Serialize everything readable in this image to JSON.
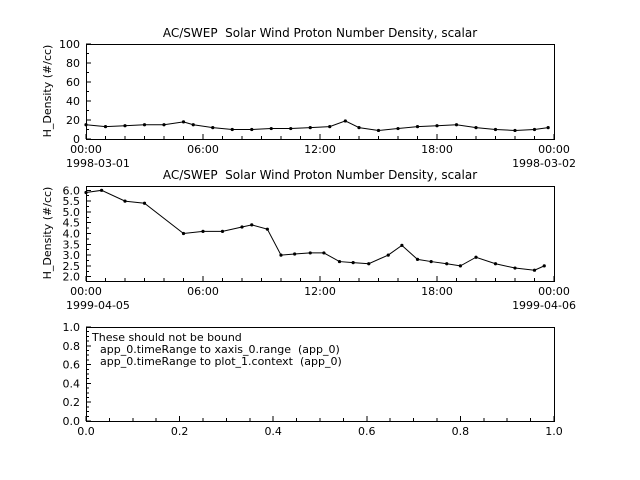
{
  "window": {
    "background": "#ffffff",
    "foreground": "#000000"
  },
  "chart_data": [
    {
      "type": "line",
      "title": "AC/SWEP  Solar Wind Proton Number Density, scalar",
      "ylabel": "H_Density (#/cc)",
      "xlim": [
        0,
        24
      ],
      "ylim": [
        0,
        100
      ],
      "yticks": [
        0,
        20,
        40,
        60,
        80,
        100
      ],
      "ytick_labels": [
        "0",
        "20",
        "40",
        "60",
        "80",
        "100"
      ],
      "xticks": [
        0,
        6,
        12,
        18,
        24
      ],
      "xtick_labels": [
        "00:00",
        "06:00",
        "12:00",
        "18:00",
        "00:00"
      ],
      "x_minor": 1,
      "y_minor": 10,
      "x_start_label": "1998-03-01",
      "x_end_label": "1998-03-02",
      "line_color": "#000000",
      "grid": false,
      "x": [
        0,
        1,
        2,
        3,
        4,
        5,
        5.5,
        6.5,
        7.5,
        8.5,
        9.5,
        10.5,
        11.5,
        12.5,
        13.3,
        14,
        15,
        16,
        17,
        18,
        19,
        20,
        21,
        22,
        23,
        23.7
      ],
      "y": [
        15,
        13,
        14,
        15,
        15,
        18,
        15,
        12,
        10,
        10,
        11,
        11,
        12,
        13,
        19,
        12,
        9,
        11,
        13,
        14,
        15,
        12,
        10,
        9,
        10,
        12
      ]
    },
    {
      "type": "line",
      "title": "AC/SWEP  Solar Wind Proton Number Density, scalar",
      "ylabel": "H_Density (#/cc)",
      "xlim": [
        0,
        24
      ],
      "ylim": [
        1.8,
        6.2
      ],
      "yticks": [
        2.0,
        2.5,
        3.0,
        3.5,
        4.0,
        4.5,
        5.0,
        5.5,
        6.0
      ],
      "ytick_labels": [
        "2.0",
        "2.5",
        "3.0",
        "3.5",
        "4.0",
        "4.5",
        "5.0",
        "5.5",
        "6.0"
      ],
      "xticks": [
        0,
        6,
        12,
        18,
        24
      ],
      "xtick_labels": [
        "00:00",
        "06:00",
        "12:00",
        "18:00",
        "00:00"
      ],
      "x_minor": 1,
      "y_minor": 0.25,
      "x_start_label": "1999-04-05",
      "x_end_label": "1999-04-06",
      "line_color": "#000000",
      "grid": false,
      "x": [
        0,
        0.8,
        2,
        3,
        5,
        6,
        7,
        8,
        8.5,
        9.3,
        10,
        10.7,
        11.5,
        12.2,
        13,
        13.7,
        14.5,
        15.5,
        16.2,
        17,
        17.7,
        18.5,
        19.2,
        20,
        21,
        22,
        23,
        23.5
      ],
      "y": [
        5.9,
        6.0,
        5.5,
        5.4,
        4.0,
        4.1,
        4.1,
        4.3,
        4.4,
        4.2,
        3.0,
        3.05,
        3.1,
        3.1,
        2.7,
        2.65,
        2.6,
        3.0,
        3.45,
        2.8,
        2.7,
        2.6,
        2.5,
        2.9,
        2.6,
        2.4,
        2.3,
        2.5
      ]
    },
    {
      "type": "empty",
      "title": "",
      "ylabel": "",
      "xlim": [
        0,
        1
      ],
      "ylim": [
        0,
        1
      ],
      "yticks": [
        0,
        0.2,
        0.4,
        0.6,
        0.8,
        1.0
      ],
      "ytick_labels": [
        "0.0",
        "0.2",
        "0.4",
        "0.6",
        "0.8",
        "1.0"
      ],
      "xticks": [
        0,
        0.2,
        0.4,
        0.6,
        0.8,
        1.0
      ],
      "xtick_labels": [
        "0.0",
        "0.2",
        "0.4",
        "0.6",
        "0.8",
        "1.0"
      ],
      "x_minor": 0.05,
      "y_minor": 0.05,
      "grid": false,
      "annotations": [
        "These should not be bound",
        "app_0.timeRange to xaxis_0.range  (app_0)",
        "app_0.timeRange to plot_1.context  (app_0)"
      ]
    }
  ]
}
